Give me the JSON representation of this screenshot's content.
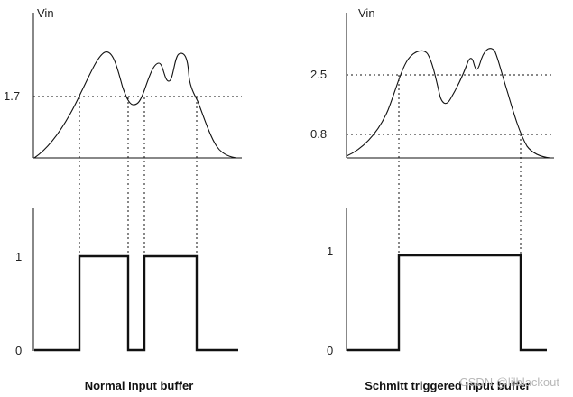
{
  "left": {
    "vin_label": "Vin",
    "threshold_label": "1.7",
    "high_label": "1",
    "low_label": "0",
    "caption": "Normal Input buffer"
  },
  "right": {
    "vin_label": "Vin",
    "upper_threshold_label": "2.5",
    "lower_threshold_label": "0.8",
    "high_label": "1",
    "low_label": "0",
    "caption": "Schmitt triggered Input buffer"
  },
  "watermark": "CSDN @lilblackout"
}
